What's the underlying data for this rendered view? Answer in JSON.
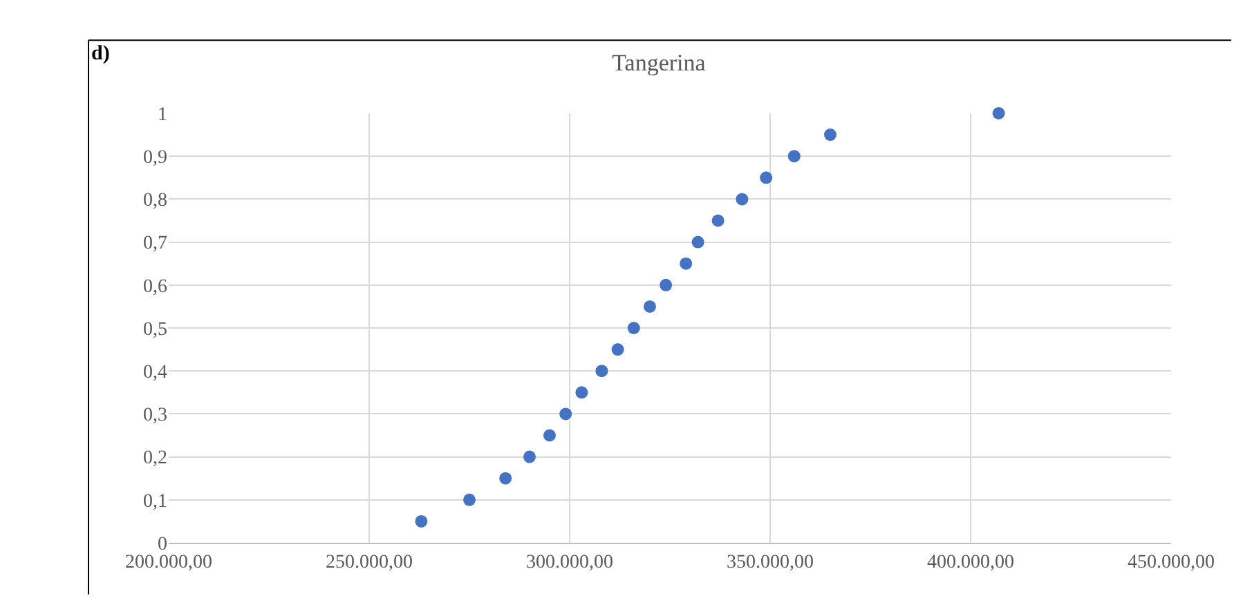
{
  "chart_data": {
    "type": "scatter",
    "title": "Tangerina",
    "annotations": [
      "d)"
    ],
    "x": [
      263000,
      275000,
      284000,
      290000,
      295000,
      299000,
      303000,
      308000,
      312000,
      316000,
      320000,
      324000,
      329000,
      332000,
      337000,
      343000,
      349000,
      356000,
      365000,
      407000
    ],
    "series": [
      {
        "color": "#4472c4",
        "values": [
          0.05,
          0.1,
          0.15,
          0.2,
          0.25,
          0.3,
          0.35,
          0.4,
          0.45,
          0.5,
          0.55,
          0.6,
          0.65,
          0.7,
          0.75,
          0.8,
          0.85,
          0.9,
          0.95,
          1
        ]
      }
    ],
    "xlim": [
      200000,
      450000
    ],
    "xticks": [
      {
        "value": 200000,
        "label": "200.000,00"
      },
      {
        "value": 250000,
        "label": "250.000,00"
      },
      {
        "value": 300000,
        "label": "300.000,00"
      },
      {
        "value": 350000,
        "label": "350.000,00"
      },
      {
        "value": 400000,
        "label": "400.000,00"
      },
      {
        "value": 450000,
        "label": "450.000,00"
      }
    ],
    "ylim": [
      0,
      1
    ],
    "yticks": [
      0,
      {
        "value": 0.1,
        "label": "0,1"
      },
      {
        "value": 0.2,
        "label": "0,2"
      },
      {
        "value": 0.3,
        "label": "0,3"
      },
      {
        "value": 0.4,
        "label": "0,4"
      },
      {
        "value": 0.5,
        "label": "0,5"
      },
      {
        "value": 0.6,
        "label": "0,6"
      },
      {
        "value": 0.7,
        "label": "0,7"
      },
      {
        "value": 0.8,
        "label": "0,8"
      },
      {
        "value": 0.9,
        "label": "0,9"
      },
      1
    ],
    "grid": true,
    "legend": false,
    "marker": "circle"
  }
}
